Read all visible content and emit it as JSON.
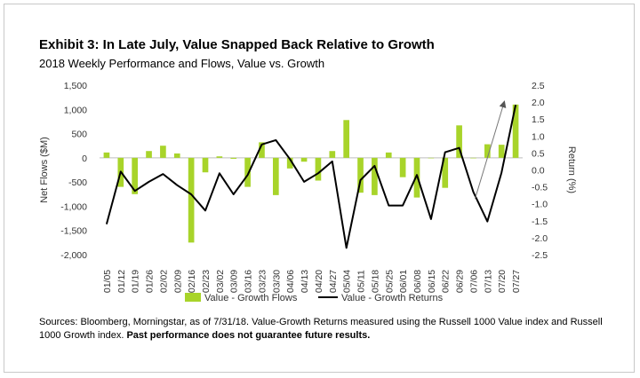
{
  "chart_data": {
    "type": "bar+line",
    "title": "Exhibit 3: In Late July, Value Snapped Back Relative to Growth",
    "subtitle": "2018 Weekly Performance and Flows, Value vs. Growth",
    "categories": [
      "01/05",
      "01/12",
      "01/19",
      "01/26",
      "02/02",
      "02/09",
      "02/16",
      "02/23",
      "03/02",
      "03/09",
      "03/16",
      "03/23",
      "03/30",
      "04/06",
      "04/13",
      "04/20",
      "04/27",
      "05/04",
      "05/11",
      "05/18",
      "05/25",
      "06/01",
      "06/08",
      "06/15",
      "06/22",
      "06/29",
      "07/06",
      "07/13",
      "07/20",
      "07/27"
    ],
    "ylabel_left": "Net Flows ($M)",
    "ylabel_right": "Return (%)",
    "ylim_left": [
      -2000,
      1500
    ],
    "ylim_right": [
      -2.5,
      2.5
    ],
    "yticks_left": [
      "1,500",
      "1,000",
      "500",
      "0",
      "-500",
      "-1,000",
      "-1,500",
      "-2,000"
    ],
    "yticks_right": [
      "2.5",
      "2.0",
      "1.5",
      "1.0",
      "0.5",
      "0.0",
      "-0.5",
      "-1.0",
      "-1.5",
      "-2.0",
      "-2.5"
    ],
    "series": [
      {
        "name": "Value - Growth Flows",
        "type": "bar",
        "axis": "left",
        "color": "#a8d42a",
        "values": [
          110,
          -600,
          -750,
          140,
          250,
          90,
          -1750,
          -300,
          30,
          -20,
          -600,
          320,
          -770,
          -220,
          -80,
          -470,
          140,
          780,
          -720,
          -770,
          110,
          -400,
          -820,
          -10,
          -620,
          670,
          -10,
          280,
          270,
          1100
        ]
      },
      {
        "name": "Value - Growth Returns",
        "type": "line",
        "axis": "right",
        "color": "#000000",
        "values": [
          -1.6,
          -0.05,
          -0.62,
          -0.35,
          -0.12,
          -0.45,
          -0.72,
          -1.2,
          -0.1,
          -0.72,
          -0.15,
          0.75,
          0.88,
          0.32,
          -0.35,
          -0.1,
          0.25,
          -2.3,
          -0.3,
          0.12,
          -1.05,
          -1.05,
          -0.15,
          -1.45,
          0.52,
          0.65,
          -0.65,
          -1.52,
          -0.08,
          1.92
        ]
      }
    ],
    "legend_position": "bottom-center",
    "annotation": "arrow"
  },
  "footnote": {
    "text": "Sources: Bloomberg, Morningstar, as of 7/31/18. Value-Growth Returns measured using the Russell 1000 Value index and Russell 1000 Growth index.",
    "bold": "Past performance does not guarantee future results."
  }
}
